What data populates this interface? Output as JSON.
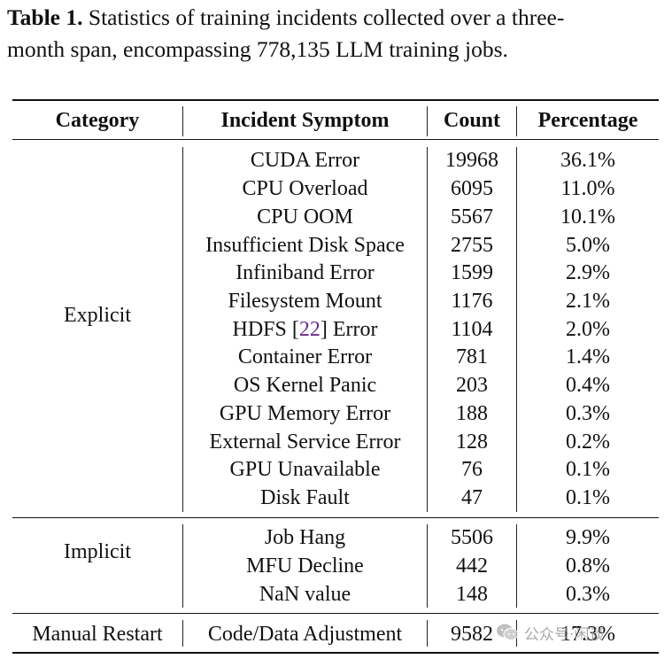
{
  "caption": {
    "label": "Table 1.",
    "line1": " Statistics of training incidents collected over a three-",
    "line2": "month span, encompassing 778,135 LLM training jobs."
  },
  "headers": [
    "Category",
    "Incident Symptom",
    "Count",
    "Percentage"
  ],
  "groups": [
    {
      "category": "Explicit",
      "rows": [
        {
          "symptom": "CUDA Error",
          "count": "19968",
          "pct": "36.1%"
        },
        {
          "symptom": "CPU Overload",
          "count": "6095",
          "pct": "11.0%"
        },
        {
          "symptom": "CPU OOM",
          "count": "5567",
          "pct": "10.1%"
        },
        {
          "symptom": "Insufficient Disk Space",
          "count": "2755",
          "pct": "5.0%"
        },
        {
          "symptom": "Infiniband Error",
          "count": "1599",
          "pct": "2.9%"
        },
        {
          "symptom": "Filesystem Mount",
          "count": "1176",
          "pct": "2.1%"
        },
        {
          "symptom_pre": "HDFS [",
          "symptom_cite": "22",
          "symptom_post": "] Error",
          "count": "1104",
          "pct": "2.0%"
        },
        {
          "symptom": "Container Error",
          "count": "781",
          "pct": "1.4%"
        },
        {
          "symptom": "OS Kernel Panic",
          "count": "203",
          "pct": "0.4%"
        },
        {
          "symptom": "GPU Memory Error",
          "count": "188",
          "pct": "0.3%"
        },
        {
          "symptom": "External Service Error",
          "count": "128",
          "pct": "0.2%"
        },
        {
          "symptom": "GPU Unavailable",
          "count": "76",
          "pct": "0.1%"
        },
        {
          "symptom": "Disk Fault",
          "count": "47",
          "pct": "0.1%"
        }
      ]
    },
    {
      "category": "Implicit",
      "rows": [
        {
          "symptom": "Job Hang",
          "count": "5506",
          "pct": "9.9%"
        },
        {
          "symptom": "MFU Decline",
          "count": "442",
          "pct": "0.8%"
        },
        {
          "symptom": "NaN value",
          "count": "148",
          "pct": "0.3%"
        }
      ]
    },
    {
      "category": "Manual Restart",
      "rows": [
        {
          "symptom": "Code/Data Adjustment",
          "count": "9582",
          "pct": "17.3%"
        }
      ]
    }
  ],
  "watermark": {
    "text": "公众号·闲谈",
    "icon": "wechat-icon"
  }
}
